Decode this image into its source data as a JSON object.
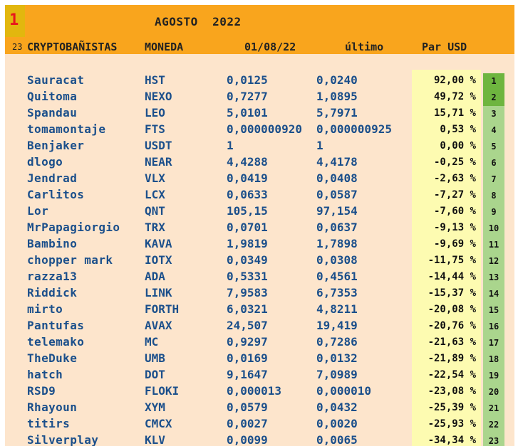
{
  "header": {
    "rank_number": "1",
    "title": "AGOSTO  2022",
    "participant_count": "23",
    "columns": {
      "name": "CRYPTOBAÑISTAS",
      "coin": "MONEDA",
      "start": "01/08/22",
      "last": "último",
      "pair": "Par USD"
    }
  },
  "colors": {
    "header_orange": "#f9a51d",
    "rank_box": "#e2b70e",
    "rank_text": "#e8161d",
    "sheet_bg": "#fde5cc",
    "percent_bg": "#fdfbb1",
    "position_bg": "#aad58d",
    "position_top_bg": "#6eb53f",
    "text_blue": "#1b4f8b"
  },
  "rows": [
    {
      "name": "Sauracat",
      "coin": "HST",
      "start": "0,0125",
      "last": "0,0240",
      "change": "92,00 %",
      "pos": "1"
    },
    {
      "name": "Quitoma",
      "coin": "NEXO",
      "start": "0,7277",
      "last": "1,0895",
      "change": "49,72 %",
      "pos": "2"
    },
    {
      "name": "Spandau",
      "coin": "LEO",
      "start": "5,0101",
      "last": "5,7971",
      "change": "15,71 %",
      "pos": "3"
    },
    {
      "name": "tomamontaje",
      "coin": "FTS",
      "start": "0,000000920",
      "last": "0,000000925",
      "change": "0,53 %",
      "pos": "4"
    },
    {
      "name": "Benjaker",
      "coin": "USDT",
      "start": "1",
      "last": "1",
      "change": "0,00 %",
      "pos": "5"
    },
    {
      "name": "dlogo",
      "coin": "NEAR",
      "start": "4,4288",
      "last": "4,4178",
      "change": "-0,25 %",
      "pos": "6"
    },
    {
      "name": "Jendrad",
      "coin": "VLX",
      "start": "0,0419",
      "last": "0,0408",
      "change": "-2,63 %",
      "pos": "7"
    },
    {
      "name": "Carlitos",
      "coin": "LCX",
      "start": "0,0633",
      "last": "0,0587",
      "change": "-7,27 %",
      "pos": "8"
    },
    {
      "name": "Lor",
      "coin": "QNT",
      "start": "105,15",
      "last": "97,154",
      "change": "-7,60 %",
      "pos": "9"
    },
    {
      "name": "MrPapagiorgio",
      "coin": "TRX",
      "start": "0,0701",
      "last": "0,0637",
      "change": "-9,13 %",
      "pos": "10"
    },
    {
      "name": "Bambino",
      "coin": "KAVA",
      "start": "1,9819",
      "last": "1,7898",
      "change": "-9,69 %",
      "pos": "11"
    },
    {
      "name": "chopper mark",
      "coin": "IOTX",
      "start": "0,0349",
      "last": "0,0308",
      "change": "-11,75 %",
      "pos": "12"
    },
    {
      "name": "razza13",
      "coin": "ADA",
      "start": "0,5331",
      "last": "0,4561",
      "change": "-14,44 %",
      "pos": "13"
    },
    {
      "name": "Riddick",
      "coin": "LINK",
      "start": "7,9583",
      "last": "6,7353",
      "change": "-15,37 %",
      "pos": "14"
    },
    {
      "name": "mirto",
      "coin": "FORTH",
      "start": "6,0321",
      "last": "4,8211",
      "change": "-20,08 %",
      "pos": "15"
    },
    {
      "name": "Pantufas",
      "coin": "AVAX",
      "start": "24,507",
      "last": "19,419",
      "change": "-20,76 %",
      "pos": "16"
    },
    {
      "name": "telemako",
      "coin": "MC",
      "start": "0,9297",
      "last": "0,7286",
      "change": "-21,63 %",
      "pos": "17"
    },
    {
      "name": "TheDuke",
      "coin": "UMB",
      "start": "0,0169",
      "last": "0,0132",
      "change": "-21,89 %",
      "pos": "18"
    },
    {
      "name": "hatch",
      "coin": "DOT",
      "start": "9,1647",
      "last": "7,0989",
      "change": "-22,54 %",
      "pos": "19"
    },
    {
      "name": "RSD9",
      "coin": "FLOKI",
      "start": "0,000013",
      "last": "0,000010",
      "change": "-23,08 %",
      "pos": "20"
    },
    {
      "name": "Rhayoun",
      "coin": "XYM",
      "start": "0,0579",
      "last": "0,0432",
      "change": "-25,39 %",
      "pos": "21"
    },
    {
      "name": "titirs",
      "coin": "CMCX",
      "start": "0,0027",
      "last": "0,0020",
      "change": "-25,93 %",
      "pos": "22"
    },
    {
      "name": "Silverplay",
      "coin": "KLV",
      "start": "0,0099",
      "last": "0,0065",
      "change": "-34,34 %",
      "pos": "23"
    }
  ]
}
